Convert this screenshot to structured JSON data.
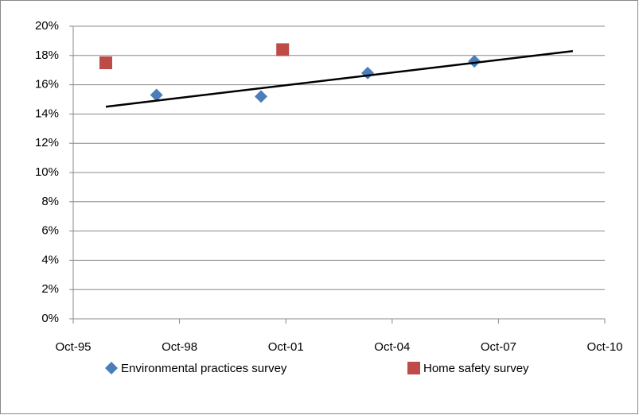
{
  "chart_data": {
    "type": "scatter",
    "series": [
      {
        "name": "Environmental practices survey",
        "color": "#4a7ebb",
        "marker": "diamond",
        "x": [
          1998.1,
          2001.05,
          2004.06,
          2007.07
        ],
        "values": [
          15.3,
          15.2,
          16.8,
          17.6
        ]
      },
      {
        "name": "Home safety survey",
        "color": "#be4b48",
        "marker": "square",
        "x": [
          1996.67,
          2001.66
        ],
        "values": [
          17.5,
          18.4
        ]
      }
    ],
    "trendline": {
      "color": "#000000",
      "x": [
        1996.67,
        2009.85
      ],
      "values": [
        14.5,
        18.3
      ]
    },
    "xlim": [
      1995.75,
      2010.75
    ],
    "xticks": [
      {
        "value": 1995.75,
        "label": "Oct-95"
      },
      {
        "value": 1998.75,
        "label": "Oct-98"
      },
      {
        "value": 2001.75,
        "label": "Oct-01"
      },
      {
        "value": 2004.75,
        "label": "Oct-04"
      },
      {
        "value": 2007.75,
        "label": "Oct-07"
      },
      {
        "value": 2010.75,
        "label": "Oct-10"
      }
    ],
    "ylim": [
      0,
      20
    ],
    "yticks": [
      {
        "value": 0,
        "label": "0%"
      },
      {
        "value": 2,
        "label": "2%"
      },
      {
        "value": 4,
        "label": "4%"
      },
      {
        "value": 6,
        "label": "6%"
      },
      {
        "value": 8,
        "label": "8%"
      },
      {
        "value": 10,
        "label": "10%"
      },
      {
        "value": 12,
        "label": "12%"
      },
      {
        "value": 14,
        "label": "14%"
      },
      {
        "value": 16,
        "label": "16%"
      },
      {
        "value": 18,
        "label": "18%"
      },
      {
        "value": 20,
        "label": "20%"
      }
    ],
    "grid": true,
    "legend": "bottom"
  }
}
